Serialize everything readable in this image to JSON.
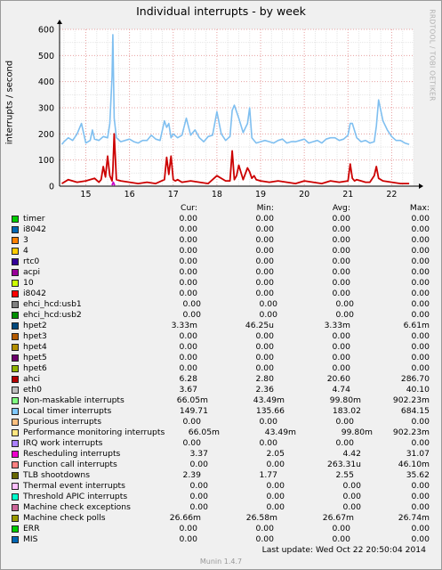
{
  "chart_data": {
    "type": "line",
    "title": "Individual interrupts - by week",
    "ylabel": "interrupts / second",
    "vendor": "RRDTOOL / TOBI OETIKER",
    "xlim": [
      14.4,
      22.5
    ],
    "ylim": [
      0,
      600
    ],
    "yticks": [
      0,
      100,
      200,
      300,
      400,
      500,
      600
    ],
    "xticks": [
      15,
      16,
      17,
      18,
      19,
      20,
      21,
      22
    ],
    "grid": true,
    "series": [
      {
        "name": "Local timer interrupts",
        "color": "#7fbff0",
        "x": [
          14.45,
          14.5,
          14.6,
          14.7,
          14.8,
          14.9,
          15.0,
          15.1,
          15.15,
          15.2,
          15.3,
          15.4,
          15.5,
          15.55,
          15.6,
          15.62,
          15.65,
          15.7,
          15.8,
          15.9,
          16.0,
          16.1,
          16.2,
          16.3,
          16.4,
          16.5,
          16.6,
          16.7,
          16.8,
          16.85,
          16.9,
          16.95,
          17.0,
          17.1,
          17.2,
          17.3,
          17.4,
          17.5,
          17.6,
          17.7,
          17.8,
          17.9,
          18.0,
          18.1,
          18.2,
          18.3,
          18.35,
          18.4,
          18.5,
          18.6,
          18.7,
          18.75,
          18.8,
          18.9,
          19.0,
          19.1,
          19.2,
          19.3,
          19.4,
          19.5,
          19.6,
          19.7,
          19.8,
          19.9,
          20.0,
          20.1,
          20.2,
          20.3,
          20.4,
          20.5,
          20.6,
          20.7,
          20.8,
          20.9,
          21.0,
          21.05,
          21.1,
          21.2,
          21.3,
          21.4,
          21.5,
          21.6,
          21.65,
          21.7,
          21.8,
          21.9,
          22.0,
          22.1,
          22.2,
          22.3,
          22.4
        ],
        "y": [
          160,
          170,
          185,
          175,
          200,
          240,
          165,
          175,
          215,
          180,
          175,
          190,
          185,
          240,
          420,
          580,
          260,
          185,
          170,
          175,
          180,
          170,
          165,
          175,
          175,
          195,
          180,
          175,
          250,
          225,
          240,
          185,
          200,
          185,
          195,
          260,
          195,
          215,
          185,
          170,
          190,
          195,
          285,
          200,
          175,
          190,
          290,
          310,
          260,
          205,
          240,
          300,
          185,
          165,
          170,
          175,
          170,
          165,
          175,
          180,
          165,
          170,
          170,
          175,
          180,
          165,
          170,
          175,
          165,
          180,
          185,
          185,
          175,
          180,
          195,
          240,
          240,
          185,
          170,
          175,
          165,
          170,
          230,
          330,
          250,
          215,
          190,
          175,
          175,
          165,
          160
        ],
        "cur": "149.71",
        "min": "135.66",
        "avg": "183.02",
        "max": "684.15"
      },
      {
        "name": "ahci",
        "color": "#cc0000",
        "x": [
          14.45,
          14.6,
          14.8,
          15.0,
          15.2,
          15.3,
          15.35,
          15.4,
          15.45,
          15.5,
          15.55,
          15.6,
          15.62,
          15.65,
          15.7,
          15.8,
          16.0,
          16.2,
          16.4,
          16.6,
          16.8,
          16.85,
          16.9,
          16.95,
          17.0,
          17.05,
          17.1,
          17.2,
          17.4,
          17.6,
          17.8,
          18.0,
          18.2,
          18.3,
          18.35,
          18.4,
          18.45,
          18.5,
          18.6,
          18.7,
          18.75,
          18.8,
          18.85,
          18.9,
          19.0,
          19.2,
          19.4,
          19.6,
          19.8,
          20.0,
          20.2,
          20.4,
          20.6,
          20.8,
          21.0,
          21.05,
          21.1,
          21.15,
          21.2,
          21.3,
          21.4,
          21.5,
          21.6,
          21.65,
          21.7,
          21.8,
          22.0,
          22.2,
          22.4
        ],
        "y": [
          10,
          25,
          15,
          20,
          30,
          15,
          25,
          75,
          35,
          115,
          40,
          20,
          60,
          200,
          25,
          20,
          15,
          10,
          15,
          10,
          25,
          110,
          45,
          115,
          25,
          20,
          25,
          15,
          20,
          15,
          10,
          40,
          20,
          20,
          135,
          25,
          40,
          80,
          25,
          70,
          55,
          30,
          40,
          25,
          20,
          15,
          20,
          15,
          10,
          20,
          15,
          10,
          20,
          15,
          20,
          85,
          30,
          20,
          25,
          20,
          15,
          15,
          40,
          75,
          30,
          20,
          15,
          10,
          10
        ],
        "cur": "6.28",
        "min": "2.80",
        "avg": "20.60",
        "max": "286.70"
      },
      {
        "name": "Rescheduling interrupts",
        "color": "#cc00cc",
        "x": [
          15.6,
          15.63,
          15.66
        ],
        "y": [
          3,
          15,
          3
        ],
        "cur": "3.37",
        "min": "2.05",
        "avg": "4.42",
        "max": "31.07"
      }
    ]
  },
  "legend": {
    "headers": {
      "cur": "Cur:",
      "min": "Min:",
      "avg": "Avg:",
      "max": "Max:"
    },
    "rows": [
      {
        "name": "timer",
        "color": "#00cc00",
        "cur": "0.00",
        "min": "0.00",
        "avg": "0.00",
        "max": "0.00"
      },
      {
        "name": "i8042",
        "color": "#0066b3",
        "cur": "0.00",
        "min": "0.00",
        "avg": "0.00",
        "max": "0.00"
      },
      {
        "name": "3",
        "color": "#ff8000",
        "cur": "0.00",
        "min": "0.00",
        "avg": "0.00",
        "max": "0.00"
      },
      {
        "name": "4",
        "color": "#ffcc00",
        "cur": "0.00",
        "min": "0.00",
        "avg": "0.00",
        "max": "0.00"
      },
      {
        "name": "rtc0",
        "color": "#330099",
        "cur": "0.00",
        "min": "0.00",
        "avg": "0.00",
        "max": "0.00"
      },
      {
        "name": "acpi",
        "color": "#990099",
        "cur": "0.00",
        "min": "0.00",
        "avg": "0.00",
        "max": "0.00"
      },
      {
        "name": "10",
        "color": "#ccff00",
        "cur": "0.00",
        "min": "0.00",
        "avg": "0.00",
        "max": "0.00"
      },
      {
        "name": "i8042",
        "color": "#ff0000",
        "cur": "0.00",
        "min": "0.00",
        "avg": "0.00",
        "max": "0.00"
      },
      {
        "name": "ehci_hcd:usb1",
        "color": "#808080",
        "cur": "0.00",
        "min": "0.00",
        "avg": "0.00",
        "max": "0.00"
      },
      {
        "name": "ehci_hcd:usb2",
        "color": "#008f00",
        "cur": "0.00",
        "min": "0.00",
        "avg": "0.00",
        "max": "0.00"
      },
      {
        "name": "hpet2",
        "color": "#00487d",
        "cur": "3.33m",
        "min": "46.25u",
        "avg": "3.33m",
        "max": "6.61m"
      },
      {
        "name": "hpet3",
        "color": "#b35a00",
        "cur": "0.00",
        "min": "0.00",
        "avg": "0.00",
        "max": "0.00"
      },
      {
        "name": "hpet4",
        "color": "#b38f00",
        "cur": "0.00",
        "min": "0.00",
        "avg": "0.00",
        "max": "0.00"
      },
      {
        "name": "hpet5",
        "color": "#6b006b",
        "cur": "0.00",
        "min": "0.00",
        "avg": "0.00",
        "max": "0.00"
      },
      {
        "name": "hpet6",
        "color": "#8fb300",
        "cur": "0.00",
        "min": "0.00",
        "avg": "0.00",
        "max": "0.00"
      },
      {
        "name": "ahci",
        "color": "#b30000",
        "cur": "6.28",
        "min": "2.80",
        "avg": "20.60",
        "max": "286.70"
      },
      {
        "name": "eth0",
        "color": "#bebebe",
        "cur": "3.67",
        "min": "2.36",
        "avg": "4.74",
        "max": "40.10"
      },
      {
        "name": "Non-maskable interrupts",
        "color": "#80ff80",
        "cur": "66.05m",
        "min": "43.49m",
        "avg": "99.80m",
        "max": "902.23m"
      },
      {
        "name": "Local timer interrupts",
        "color": "#80c9ff",
        "cur": "149.71",
        "min": "135.66",
        "avg": "183.02",
        "max": "684.15"
      },
      {
        "name": "Spurious interrupts",
        "color": "#ffc080",
        "cur": "0.00",
        "min": "0.00",
        "avg": "0.00",
        "max": "0.00"
      },
      {
        "name": "Performance monitoring interrupts",
        "color": "#ffe680",
        "cur": "66.05m",
        "min": "43.49m",
        "avg": "99.80m",
        "max": "902.23m"
      },
      {
        "name": "IRQ work interrupts",
        "color": "#aa80ff",
        "cur": "0.00",
        "min": "0.00",
        "avg": "0.00",
        "max": "0.00"
      },
      {
        "name": "Rescheduling interrupts",
        "color": "#ee00cc",
        "cur": "3.37",
        "min": "2.05",
        "avg": "4.42",
        "max": "31.07"
      },
      {
        "name": "Function call interrupts",
        "color": "#ff8080",
        "cur": "0.00",
        "min": "0.00",
        "avg": "263.31u",
        "max": "46.10m"
      },
      {
        "name": "TLB shootdowns",
        "color": "#666600",
        "cur": "2.39",
        "min": "1.77",
        "avg": "2.55",
        "max": "35.62"
      },
      {
        "name": "Thermal event interrupts",
        "color": "#ffbfff",
        "cur": "0.00",
        "min": "0.00",
        "avg": "0.00",
        "max": "0.00"
      },
      {
        "name": "Threshold APIC interrupts",
        "color": "#00ffcc",
        "cur": "0.00",
        "min": "0.00",
        "avg": "0.00",
        "max": "0.00"
      },
      {
        "name": "Machine check exceptions",
        "color": "#cc6699",
        "cur": "0.00",
        "min": "0.00",
        "avg": "0.00",
        "max": "0.00"
      },
      {
        "name": "Machine check polls",
        "color": "#999900",
        "cur": "26.66m",
        "min": "26.58m",
        "avg": "26.67m",
        "max": "26.74m"
      },
      {
        "name": "ERR",
        "color": "#00cc00",
        "cur": "0.00",
        "min": "0.00",
        "avg": "0.00",
        "max": "0.00"
      },
      {
        "name": "MIS",
        "color": "#0066b3",
        "cur": "0.00",
        "min": "0.00",
        "avg": "0.00",
        "max": "0.00"
      }
    ]
  },
  "footer": {
    "last_update": "Last update: Wed Oct 22 20:50:04 2014",
    "munin": "Munin 1.4.7"
  }
}
